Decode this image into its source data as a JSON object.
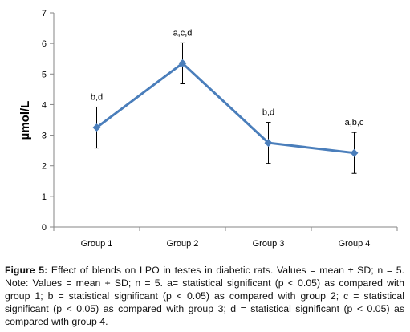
{
  "chart_data": {
    "type": "line",
    "categories": [
      "Group 1",
      "Group 2",
      "Group 3",
      "Group 4"
    ],
    "series": [
      {
        "values": [
          3.25,
          5.35,
          2.75,
          2.42
        ],
        "errors": [
          0.67,
          0.67,
          0.67,
          0.67
        ],
        "color": "#4a7ebb"
      }
    ],
    "annotations": [
      "b,d",
      "a,c,d",
      "b,d",
      "a,b,c"
    ],
    "ylabel": "µmol/L",
    "ylim": [
      0,
      7
    ],
    "yticks": [
      0,
      1,
      2,
      3,
      4,
      5,
      6,
      7
    ],
    "grid": false
  },
  "caption": {
    "label": "Figure 5:",
    "text": " Effect of blends on LPO in testes in diabetic rats. Values = mean ± SD; n = 5. Note: Values = mean + SD; n = 5. a= statistical significant (p < 0.05) as compared with group 1; b = statistical significant (p < 0.05) as compared with group 2; c = statistical significant (p < 0.05) as compared with group 3; d = statistical significant (p < 0.05) as compared with group 4."
  }
}
